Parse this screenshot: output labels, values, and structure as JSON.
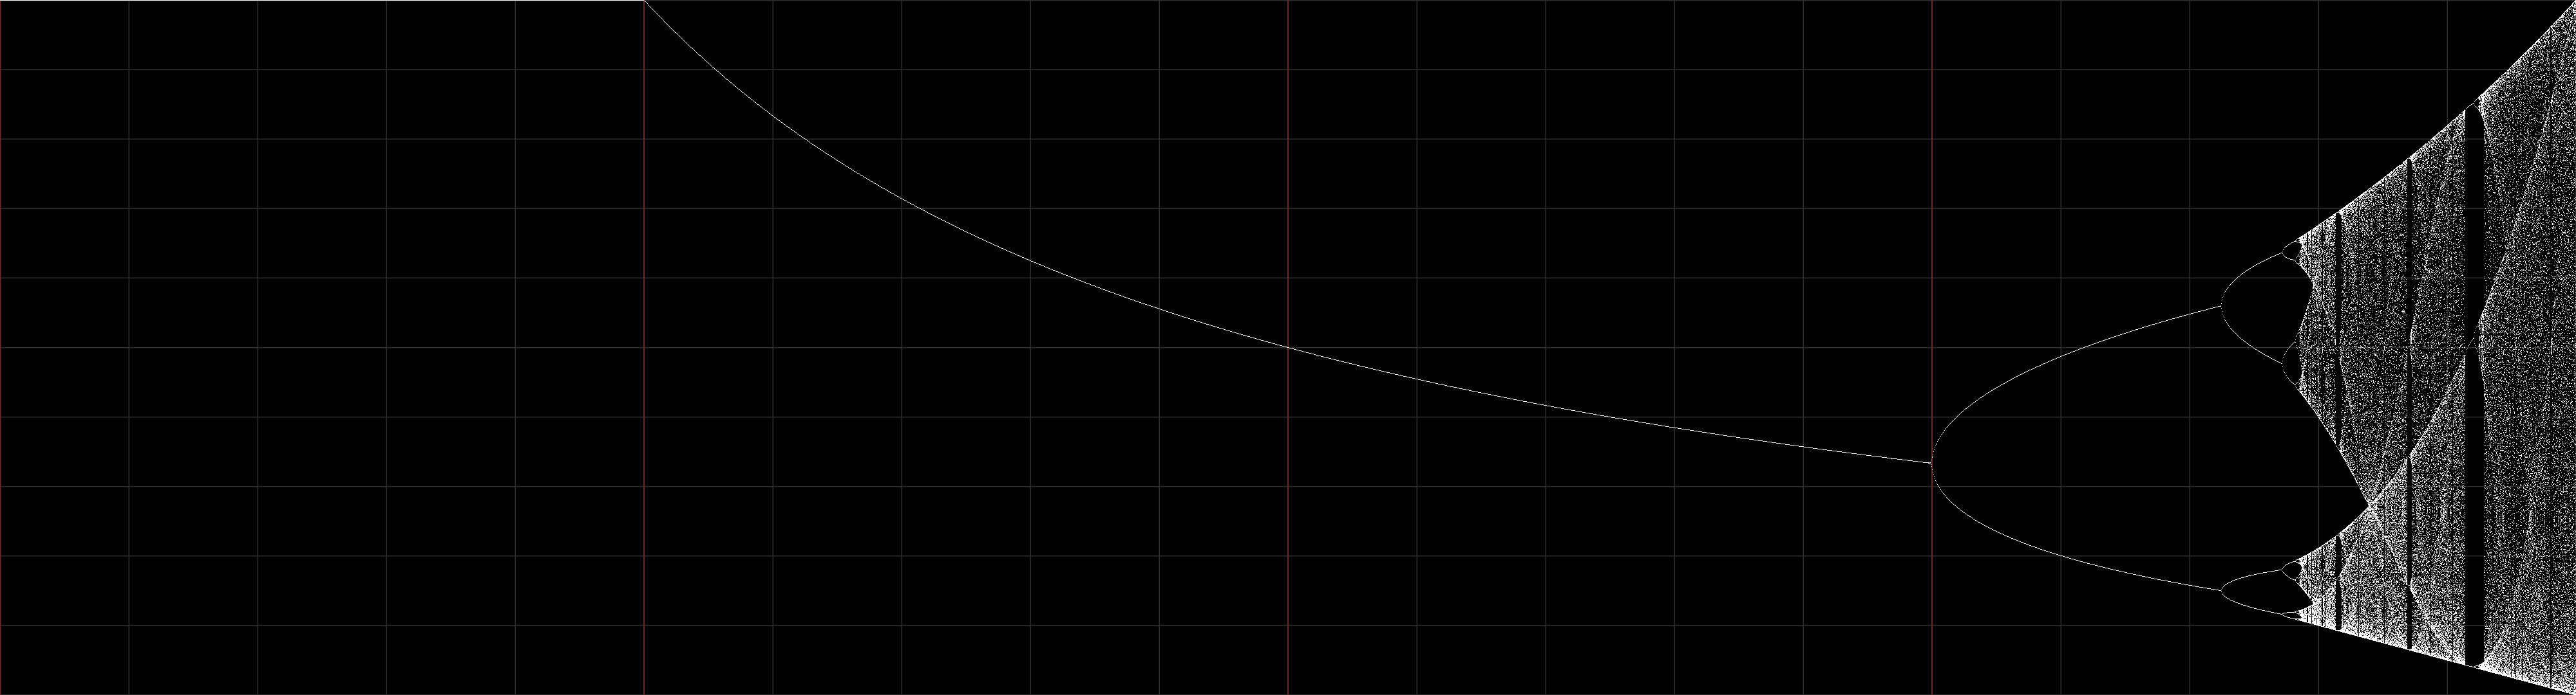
{
  "chart_data": {
    "type": "bifurcation",
    "xlim": [
      0,
      4
    ],
    "ylim": [
      1,
      0
    ],
    "xticks": [
      0,
      0.2,
      0.4,
      0.6,
      0.8,
      1,
      1.2,
      1.4,
      1.6,
      1.8,
      2,
      2.2,
      2.4,
      2.6,
      2.8,
      3,
      3.2,
      3.4,
      3.6,
      3.8,
      4
    ],
    "yticks": [
      0,
      0.1,
      0.2,
      0.3,
      0.4,
      0.5,
      0.6,
      0.7,
      0.8,
      0.9,
      1
    ],
    "major_xticks": [
      0,
      1,
      2,
      3
    ],
    "grid": true,
    "grid_color": "#2e2e2e",
    "major_color": "#6a2a2a",
    "color": "#ffffff"
  }
}
